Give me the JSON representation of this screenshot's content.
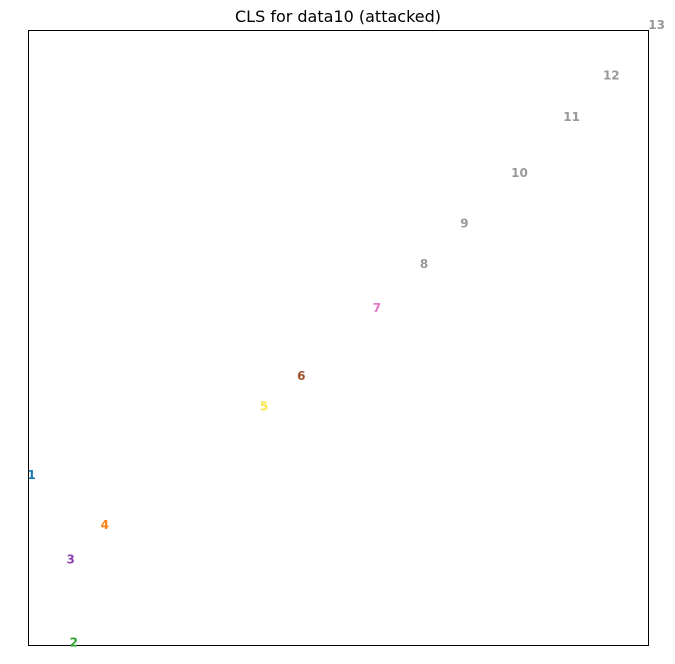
{
  "chart_data": {
    "type": "scatter",
    "title": "CLS for data10 (attacked)",
    "xlabel": "",
    "ylabel": "",
    "x_ticks_visible": false,
    "y_ticks_visible": false,
    "grid": false,
    "marker": "text-label",
    "xlim": [
      0,
      100
    ],
    "ylim": [
      0,
      100
    ],
    "points": [
      {
        "label": "1",
        "x": 0.5,
        "y": 27.7,
        "color": "#1f77b4"
      },
      {
        "label": "2",
        "x": 7.3,
        "y": 0.5,
        "color": "#2ca02c"
      },
      {
        "label": "3",
        "x": 6.8,
        "y": 14.0,
        "color": "#8e44ad"
      },
      {
        "label": "4",
        "x": 12.3,
        "y": 19.6,
        "color": "#ff7f0e"
      },
      {
        "label": "5",
        "x": 38.0,
        "y": 38.9,
        "color": "#f5e642"
      },
      {
        "label": "6",
        "x": 44.0,
        "y": 43.8,
        "color": "#a0522d"
      },
      {
        "label": "7",
        "x": 56.2,
        "y": 54.9,
        "color": "#e377c2"
      },
      {
        "label": "8",
        "x": 63.8,
        "y": 62.0,
        "color": "#999999"
      },
      {
        "label": "9",
        "x": 70.3,
        "y": 68.6,
        "color": "#999999"
      },
      {
        "label": "10",
        "x": 79.2,
        "y": 76.8,
        "color": "#999999"
      },
      {
        "label": "11",
        "x": 87.6,
        "y": 85.9,
        "color": "#999999"
      },
      {
        "label": "12",
        "x": 94.0,
        "y": 92.7,
        "color": "#999999"
      },
      {
        "label": "13",
        "x": 101.3,
        "y": 100.9,
        "color": "#999999"
      }
    ]
  }
}
